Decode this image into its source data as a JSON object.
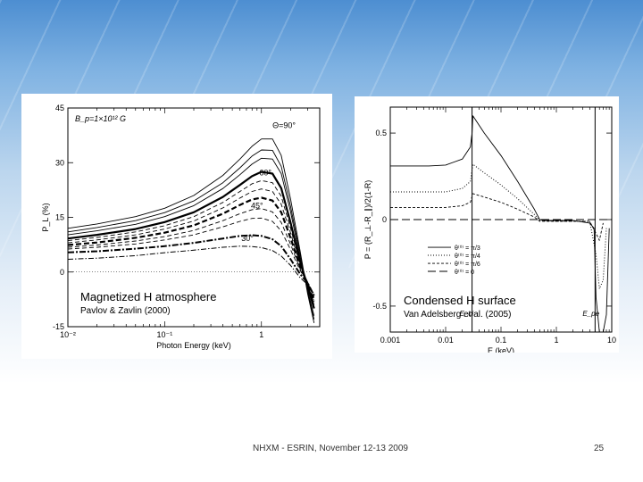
{
  "chart_data": [
    {
      "type": "line",
      "title": "",
      "xlabel": "Photon Energy (keV)",
      "ylabel": "P_L (%)",
      "xscale": "log",
      "xlim": [
        0.01,
        4
      ],
      "ylim": [
        -15,
        45
      ],
      "x_ticks": [
        {
          "v": 0.01,
          "label": "10⁻²"
        },
        {
          "v": 0.1,
          "label": "10⁻¹"
        },
        {
          "v": 1,
          "label": "1"
        }
      ],
      "y_ticks": [
        {
          "v": -15,
          "label": "-15"
        },
        {
          "v": 0,
          "label": "0"
        },
        {
          "v": 15,
          "label": "15"
        },
        {
          "v": 30,
          "label": "30"
        },
        {
          "v": 45,
          "label": "45"
        }
      ],
      "field_label": "B_p=1×10¹² G",
      "angle_labels": [
        {
          "text": "Θ=90°",
          "x": 1.3,
          "y": 39.5
        },
        {
          "text": "60°",
          "x": 0.95,
          "y": 26.5
        },
        {
          "text": "45°",
          "x": 0.78,
          "y": 17.5
        },
        {
          "text": "30°",
          "x": 0.62,
          "y": 8.5
        }
      ],
      "x": [
        0.01,
        0.02,
        0.05,
        0.1,
        0.2,
        0.4,
        0.6,
        0.8,
        1.0,
        1.3,
        1.6,
        2.0,
        2.5,
        3.0,
        3.5
      ],
      "series": [
        {
          "style": "solid-thin",
          "values": [
            12,
            13.2,
            15.2,
            17.5,
            21,
            26.5,
            31,
            34.5,
            36.5,
            36.5,
            32,
            20,
            6,
            -6,
            -14
          ]
        },
        {
          "style": "solid-thin",
          "values": [
            11,
            12.2,
            14.1,
            16.3,
            19.5,
            24.5,
            28.6,
            31.8,
            33.5,
            33.4,
            29,
            18,
            5,
            -5.5,
            -13
          ]
        },
        {
          "style": "solid-thin",
          "values": [
            10.2,
            11.3,
            13.1,
            15.2,
            18.2,
            22.9,
            26.7,
            29.6,
            31.2,
            31,
            27,
            16.5,
            4,
            -5,
            -12
          ]
        },
        {
          "style": "solid-thick",
          "values": [
            9.2,
            10.2,
            11.8,
            13.7,
            16.4,
            20.6,
            23.9,
            26.3,
            27.5,
            27,
            23,
            13.5,
            3,
            -4,
            -10
          ]
        },
        {
          "style": "dashed-thin",
          "values": [
            8.6,
            9.5,
            11,
            12.7,
            15.2,
            19.1,
            22.1,
            24.2,
            25.1,
            24.5,
            20.8,
            12,
            2.5,
            -3.8,
            -9
          ]
        },
        {
          "style": "dashed-thin",
          "values": [
            8,
            8.8,
            10.2,
            11.8,
            14,
            17.6,
            20.3,
            22.1,
            22.8,
            22.1,
            18.6,
            10.7,
            2,
            -3.5,
            -8.5
          ]
        },
        {
          "style": "dashed-thick",
          "values": [
            7.4,
            8.1,
            9.4,
            10.8,
            12.8,
            16,
            18.4,
            19.9,
            20.4,
            19.6,
            16.4,
            9.3,
            1.5,
            -3.2,
            -8
          ]
        },
        {
          "style": "dashed-thin",
          "values": [
            6.8,
            7.4,
            8.5,
            9.7,
            11.4,
            14.1,
            16,
            17.1,
            17.4,
            16.5,
            13.6,
            7.6,
            1,
            -3,
            -7.5
          ]
        },
        {
          "style": "dashed-thin",
          "values": [
            6.3,
            6.8,
            7.7,
            8.8,
            10.2,
            12.4,
            13.9,
            14.7,
            14.8,
            13.9,
            11.3,
            6.1,
            0.5,
            -2.8,
            -7
          ]
        },
        {
          "style": "dashdot-thick",
          "values": [
            5.4,
            5.7,
            6.4,
            7.1,
            8,
            9.2,
            9.9,
            10.1,
            9.9,
            9,
            7.1,
            3.5,
            -0.5,
            -3,
            -6.5
          ]
        },
        {
          "style": "dashdot-thin",
          "values": [
            3.5,
            3.8,
            4.5,
            5.3,
            6,
            6.8,
            7.1,
            7,
            6.7,
            5.9,
            4.4,
            1.8,
            -1.5,
            -3.5,
            -6
          ]
        }
      ],
      "reference_line_y": 0
    },
    {
      "type": "line",
      "title": "",
      "xlabel": "E (keV)",
      "ylabel": "P = (R_⊥-R_∥)/2(1-R)",
      "xscale": "log",
      "xlim": [
        0.001,
        10
      ],
      "ylim": [
        -0.65,
        0.65
      ],
      "x_ticks": [
        {
          "v": 0.001,
          "label": "0.001"
        },
        {
          "v": 0.01,
          "label": "0.01"
        },
        {
          "v": 0.1,
          "label": "0.1"
        },
        {
          "v": 1,
          "label": "1"
        },
        {
          "v": 10,
          "label": "10"
        }
      ],
      "y_ticks": [
        {
          "v": -0.5,
          "label": "-0.5"
        },
        {
          "v": 0,
          "label": "0"
        },
        {
          "v": 0.5,
          "label": "0.5"
        }
      ],
      "vlines": [
        {
          "x": 0.03,
          "label": "E_ci"
        },
        {
          "x": 5,
          "label": "E_pe"
        }
      ],
      "legend": [
        "θ⁽⁰⁾ = π/3",
        "θ⁽⁰⁾ = π/4",
        "θ⁽⁰⁾ = π/6",
        "θ⁽⁰⁾ = 0"
      ],
      "series": [
        {
          "name": "θ⁽⁰⁾ = π/3",
          "style": "solid",
          "x": [
            0.001,
            0.005,
            0.01,
            0.02,
            0.028,
            0.03,
            0.031,
            0.05,
            0.1,
            0.2,
            0.4,
            0.5,
            0.6,
            1,
            2,
            4,
            4.8,
            5.2,
            6,
            7,
            8,
            9
          ],
          "values": [
            0.31,
            0.31,
            0.315,
            0.35,
            0.42,
            0.5,
            0.6,
            0.5,
            0.37,
            0.22,
            0.06,
            0,
            -0.005,
            -0.005,
            -0.005,
            -0.02,
            -0.05,
            -0.45,
            -0.72,
            -0.78,
            -0.55,
            -0.05
          ]
        },
        {
          "name": "θ⁽⁰⁾ = π/4",
          "style": "dotted",
          "x": [
            0.001,
            0.01,
            0.02,
            0.028,
            0.031,
            0.05,
            0.1,
            0.2,
            0.4,
            0.5,
            1,
            4,
            5.2,
            6,
            7,
            8
          ],
          "values": [
            0.16,
            0.16,
            0.18,
            0.22,
            0.32,
            0.27,
            0.2,
            0.12,
            0.03,
            -0.005,
            -0.01,
            -0.01,
            -0.2,
            -0.4,
            -0.35,
            -0.05
          ]
        },
        {
          "name": "θ⁽⁰⁾ = π/6",
          "style": "dashed-short",
          "x": [
            0.001,
            0.01,
            0.02,
            0.028,
            0.031,
            0.05,
            0.1,
            0.2,
            0.4,
            0.5,
            1,
            4,
            5.2,
            6,
            7
          ],
          "values": [
            0.07,
            0.07,
            0.08,
            0.1,
            0.15,
            0.13,
            0.1,
            0.06,
            0.015,
            -0.01,
            -0.01,
            -0.01,
            -0.08,
            -0.12,
            -0.02
          ]
        },
        {
          "name": "θ⁽⁰⁾ = 0",
          "style": "dashed-long",
          "x": [
            0.001,
            10
          ],
          "values": [
            0,
            0
          ]
        }
      ]
    }
  ],
  "captions": {
    "left_main": "Magnetized H atmosphere",
    "left_sub": "Pavlov & Zavlin (2000)",
    "right_main": "Condensed H surface",
    "right_sub": "Van Adelsberg et al. (2005)"
  },
  "footer": {
    "center": "NHXM - ESRIN, November 12-13 2009",
    "page": "25"
  }
}
